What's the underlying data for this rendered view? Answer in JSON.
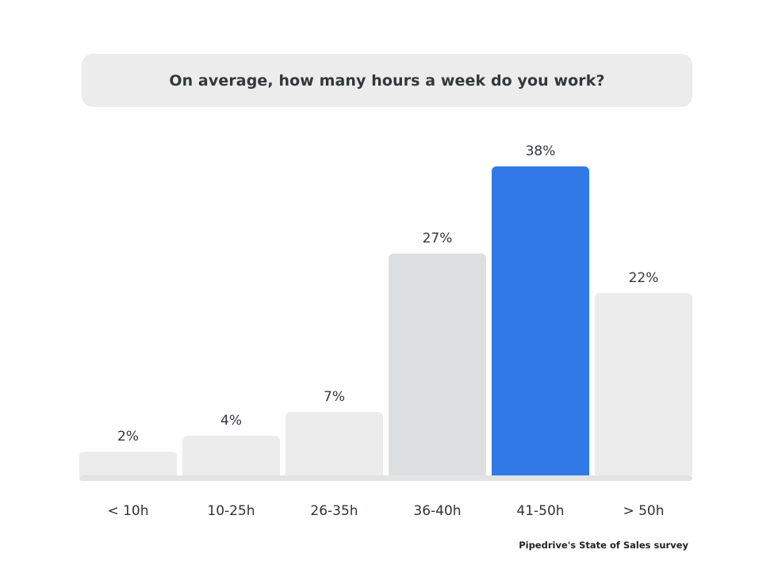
{
  "title": "On average, how many hours a week do you work?",
  "source": "Pipedrive's State of Sales survey",
  "chart_data": {
    "type": "bar",
    "title": "On average, how many hours a week do you work?",
    "categories": [
      "< 10h",
      "10-25h",
      "26-35h",
      "36-40h",
      "41-50h",
      "> 50h"
    ],
    "values": [
      2,
      4,
      7,
      27,
      38,
      22
    ],
    "value_labels": [
      "2%",
      "4%",
      "7%",
      "27%",
      "38%",
      "22%"
    ],
    "highlight_index": 4,
    "secondary_index": 3,
    "ylim": [
      0,
      40
    ],
    "grid": false,
    "legend": false,
    "xlabel": "",
    "ylabel": "",
    "colors": {
      "bar_default": "#ececec",
      "bar_secondary": "#dcdfe0",
      "bar_highlight": "#3079e6",
      "baseline": "#e2e3e3",
      "title_bg": "#ececec",
      "text": "#32373c"
    },
    "source": "Pipedrive's State of Sales survey"
  }
}
